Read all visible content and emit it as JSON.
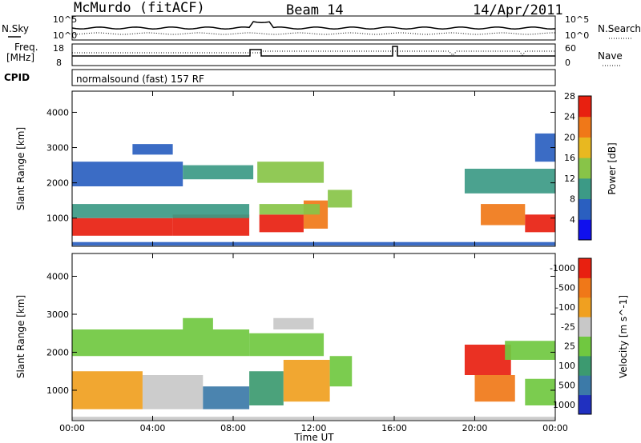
{
  "header": {
    "station": "McMurdo (fitACF)",
    "beam": "Beam 14",
    "date": "14/Apr/2011"
  },
  "status_panels": {
    "nsky_label": "N.Sky",
    "nsearch_label": "N.Search",
    "noise_ticks": [
      "10^5",
      "10^0"
    ],
    "freq_label_line1": "Freq.",
    "freq_label_line2": "[MHz]",
    "freq_ticks": [
      "18",
      "8"
    ],
    "nave_label": "Nave",
    "nave_ticks": [
      "60",
      "0"
    ],
    "cpid_label": "CPID",
    "cpid_text": "normalsound (fast) 157 RF"
  },
  "chart_data": [
    {
      "type": "heatmap",
      "title": "",
      "xlabel": "",
      "ylabel": "Slant Range [km]",
      "x_ticks": [
        "00:00",
        "04:00",
        "08:00",
        "12:00",
        "16:00",
        "20:00",
        "00:00"
      ],
      "y_ticks": [
        1000,
        2000,
        3000,
        4000
      ],
      "ylim": [
        200,
        4600
      ],
      "xlim_hours": [
        0,
        24
      ],
      "colorbar": {
        "label": "Power [dB]",
        "ticks": [
          "4",
          "8",
          "12",
          "16",
          "20",
          "24",
          "28"
        ],
        "colors": [
          "#1010ee",
          "#2a5fc0",
          "#3c9a86",
          "#88c448",
          "#e8b820",
          "#f07818",
          "#e82010"
        ]
      },
      "regions": [
        {
          "t0": 0.0,
          "t1": 5.0,
          "r0": 500,
          "r1": 1000,
          "value": 28
        },
        {
          "t0": 5.0,
          "t1": 8.8,
          "r0": 500,
          "r1": 1100,
          "value": 28
        },
        {
          "t0": 9.3,
          "t1": 11.5,
          "r0": 600,
          "r1": 1100,
          "value": 26
        },
        {
          "t0": 11.5,
          "t1": 12.7,
          "r0": 700,
          "r1": 1500,
          "value": 24
        },
        {
          "t0": 12.7,
          "t1": 13.9,
          "r0": 1300,
          "r1": 1800,
          "value": 14
        },
        {
          "t0": 0.0,
          "t1": 8.8,
          "r0": 1000,
          "r1": 1400,
          "value": 13
        },
        {
          "t0": 9.3,
          "t1": 12.3,
          "r0": 1100,
          "r1": 1400,
          "value": 14
        },
        {
          "t0": 0.0,
          "t1": 5.5,
          "r0": 1900,
          "r1": 2600,
          "value": 7
        },
        {
          "t0": 5.5,
          "t1": 9.0,
          "r0": 2100,
          "r1": 2500,
          "value": 10
        },
        {
          "t0": 9.2,
          "t1": 12.5,
          "r0": 2000,
          "r1": 2600,
          "value": 14
        },
        {
          "t0": 3.0,
          "t1": 5.0,
          "r0": 2800,
          "r1": 3100,
          "value": 7
        },
        {
          "t0": 19.5,
          "t1": 24.0,
          "r0": 1700,
          "r1": 2400,
          "value": 10
        },
        {
          "t0": 20.3,
          "t1": 22.5,
          "r0": 800,
          "r1": 1400,
          "value": 22
        },
        {
          "t0": 22.5,
          "t1": 24.0,
          "r0": 600,
          "r1": 1100,
          "value": 26
        },
        {
          "t0": 23.0,
          "t1": 24.0,
          "r0": 2600,
          "r1": 3400,
          "value": 8
        },
        {
          "t0": 0.0,
          "t1": 24.0,
          "r0": 220,
          "r1": 320,
          "value": 6
        }
      ]
    },
    {
      "type": "heatmap",
      "title": "",
      "xlabel": "Time UT",
      "ylabel": "Slant Range [km]",
      "x_ticks": [
        "00:00",
        "04:00",
        "08:00",
        "12:00",
        "16:00",
        "20:00",
        "00:00"
      ],
      "y_ticks": [
        1000,
        2000,
        3000,
        4000
      ],
      "ylim": [
        200,
        4600
      ],
      "xlim_hours": [
        0,
        24
      ],
      "colorbar": {
        "label": "Velocity [m s^-1]",
        "ticks": [
          "1000",
          "500",
          "100",
          "25",
          "-25",
          "-100",
          "-500",
          "-1000"
        ],
        "colors": [
          "#2030c0",
          "#3c7aa8",
          "#3c9a70",
          "#70c840",
          "#c8c8c8",
          "#f0a020",
          "#f07818",
          "#e82010"
        ]
      },
      "regions": [
        {
          "t0": 0.0,
          "t1": 3.5,
          "r0": 500,
          "r1": 1500,
          "value": -100
        },
        {
          "t0": 3.5,
          "t1": 6.5,
          "r0": 500,
          "r1": 1400,
          "value": -50
        },
        {
          "t0": 6.5,
          "t1": 8.8,
          "r0": 500,
          "r1": 1100,
          "value": 300
        },
        {
          "t0": 8.8,
          "t1": 10.5,
          "r0": 600,
          "r1": 1500,
          "value": 80
        },
        {
          "t0": 10.5,
          "t1": 12.8,
          "r0": 700,
          "r1": 1800,
          "value": -80
        },
        {
          "t0": 12.8,
          "t1": 13.9,
          "r0": 1100,
          "r1": 1900,
          "value": 60
        },
        {
          "t0": 0.0,
          "t1": 8.8,
          "r0": 1900,
          "r1": 2600,
          "value": 0
        },
        {
          "t0": 8.8,
          "t1": 12.5,
          "r0": 1900,
          "r1": 2500,
          "value": 0
        },
        {
          "t0": 5.5,
          "t1": 7.0,
          "r0": 2600,
          "r1": 2900,
          "value": 60
        },
        {
          "t0": 10.0,
          "t1": 12.0,
          "r0": 2600,
          "r1": 2900,
          "value": -60
        },
        {
          "t0": 19.5,
          "t1": 21.8,
          "r0": 1400,
          "r1": 2200,
          "value": -800
        },
        {
          "t0": 20.0,
          "t1": 22.0,
          "r0": 700,
          "r1": 1400,
          "value": -500
        },
        {
          "t0": 21.5,
          "t1": 24.0,
          "r0": 1800,
          "r1": 2300,
          "value": 0
        },
        {
          "t0": 22.5,
          "t1": 24.0,
          "r0": 600,
          "r1": 1300,
          "value": 60
        },
        {
          "t0": 0.0,
          "t1": 24.0,
          "r0": 220,
          "r1": 300,
          "value": -60
        }
      ]
    }
  ]
}
